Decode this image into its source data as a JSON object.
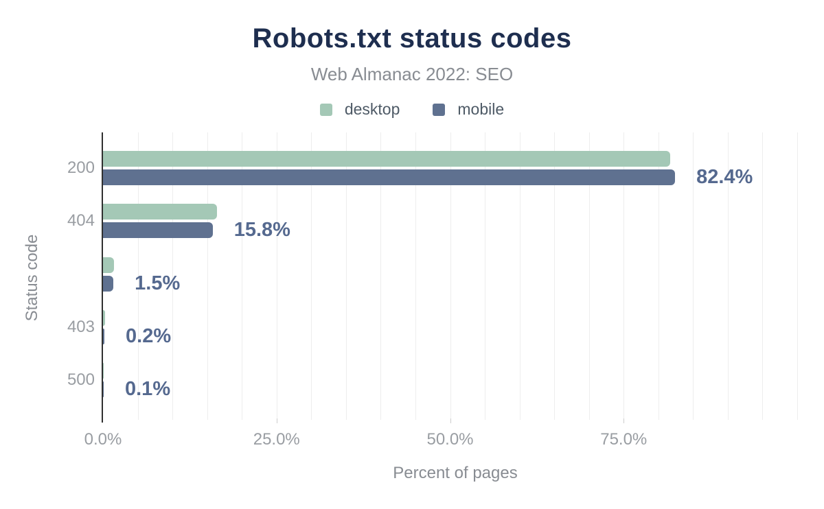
{
  "chart_data": {
    "type": "bar",
    "orientation": "horizontal",
    "title": "Robots.txt status codes",
    "subtitle": "Web Almanac 2022: SEO",
    "xlabel": "Percent of pages",
    "ylabel": "Status code",
    "categories": [
      "200",
      "404",
      "",
      "403",
      "500"
    ],
    "series": [
      {
        "name": "desktop",
        "color": "#a4c8b6",
        "values": [
          81.7,
          16.4,
          1.6,
          0.3,
          0.1
        ]
      },
      {
        "name": "mobile",
        "color": "#5f7190",
        "values": [
          82.4,
          15.8,
          1.5,
          0.2,
          0.1
        ]
      }
    ],
    "value_labels": [
      "82.4%",
      "15.8%",
      "1.5%",
      "0.2%",
      "0.1%"
    ],
    "value_label_series": "mobile",
    "x_ticks": [
      {
        "value": 0,
        "label": "0.0%"
      },
      {
        "value": 25,
        "label": "25.0%"
      },
      {
        "value": 50,
        "label": "50.0%"
      },
      {
        "value": 75,
        "label": "75.0%"
      }
    ],
    "xlim": [
      0,
      101.5
    ],
    "grid": "vertical minor gridlines every 5%",
    "legend_position": "top-center",
    "colors": {
      "title": "#1e2e4f",
      "subtitle": "#888c92",
      "axis_line": "#2f2f2f",
      "gridline": "#ededed",
      "tick_label": "#999da2",
      "value_label": "#55698f",
      "legend_label": "#4e5a66",
      "background": "#ffffff"
    }
  }
}
